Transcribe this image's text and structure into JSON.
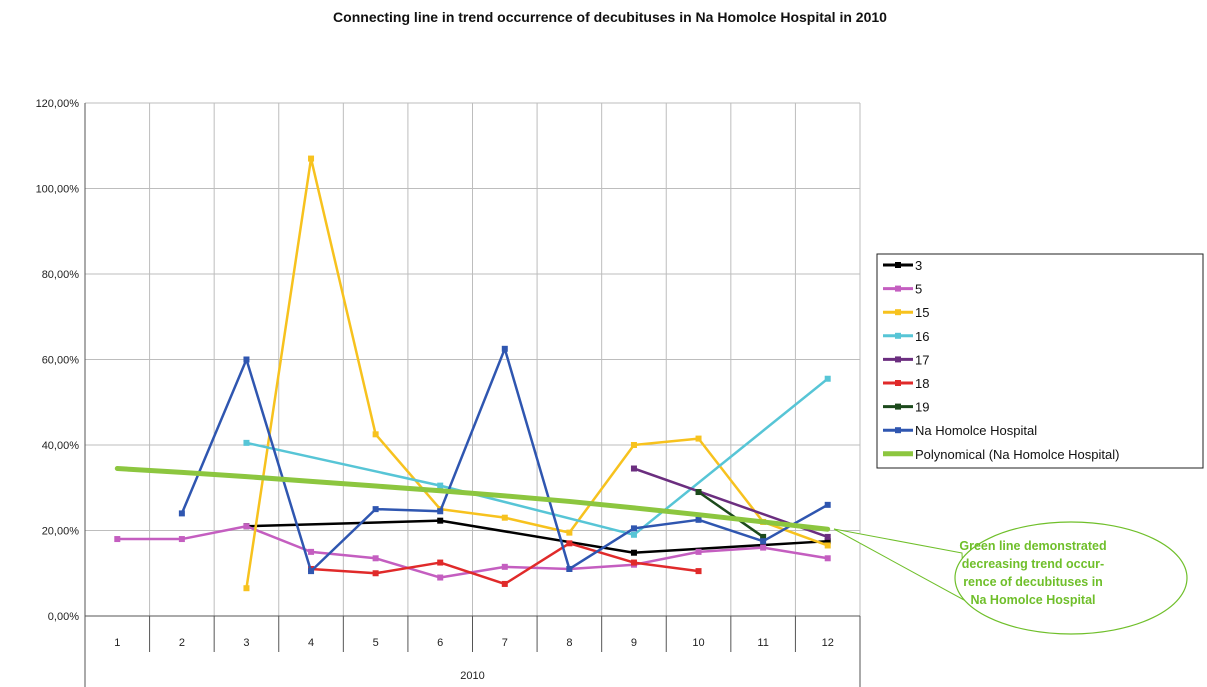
{
  "chart_data": {
    "type": "line",
    "title": "Connecting line in trend occurrence of decubituses in Na Homolce Hospital in 2010",
    "categories": [
      "1",
      "2",
      "3",
      "4",
      "5",
      "6",
      "7",
      "8",
      "9",
      "10",
      "11",
      "12"
    ],
    "x_group_label": "2010",
    "yticks": [
      "0,00%",
      "20,00%",
      "40,00%",
      "60,00%",
      "80,00%",
      "100,00%",
      "120,00%"
    ],
    "ylim": [
      0,
      120
    ],
    "grid": true,
    "legend_position": "right",
    "series": [
      {
        "name": "3",
        "color": "#000000",
        "values": [
          null,
          null,
          21,
          null,
          null,
          22.3,
          null,
          null,
          14.8,
          null,
          null,
          17.5
        ]
      },
      {
        "name": "5",
        "color": "#c45ec0",
        "values": [
          18,
          18,
          21,
          15,
          13.5,
          9,
          11.5,
          11,
          12,
          15,
          16,
          13.5
        ]
      },
      {
        "name": "15",
        "color": "#f7c21e",
        "values": [
          null,
          null,
          6.5,
          107,
          42.5,
          25,
          23,
          19.5,
          40,
          41.5,
          22,
          16.5
        ]
      },
      {
        "name": "16",
        "color": "#57c5d6",
        "values": [
          null,
          null,
          40.5,
          null,
          null,
          30.5,
          null,
          null,
          19,
          null,
          null,
          55.5
        ]
      },
      {
        "name": "17",
        "color": "#6b2e7f",
        "values": [
          null,
          null,
          null,
          null,
          null,
          null,
          null,
          null,
          34.5,
          null,
          null,
          18.5
        ]
      },
      {
        "name": "18",
        "color": "#e02a2a",
        "values": [
          null,
          null,
          null,
          11,
          10,
          12.5,
          7.5,
          17,
          12.5,
          10.5,
          null,
          null
        ]
      },
      {
        "name": "19",
        "color": "#1c4a1c",
        "values": [
          null,
          null,
          null,
          null,
          null,
          null,
          null,
          null,
          null,
          29,
          18.5,
          null
        ]
      },
      {
        "name": "Na Homolce Hospital",
        "color": "#2f56b0",
        "values": [
          null,
          24,
          60,
          10.5,
          25,
          24.5,
          62.5,
          11,
          20.5,
          22.5,
          17.5,
          26
        ]
      },
      {
        "name": "Polynomical (Na Homolce Hospital)",
        "color": "#8cc63f",
        "values": [
          34.5,
          33.6,
          32.6,
          31.5,
          30.4,
          29.3,
          28.1,
          26.8,
          25.3,
          23.7,
          22,
          20.3
        ]
      }
    ],
    "annotation": {
      "lines": [
        "Green line demonstrated",
        "decreasing trend occur-",
        "rence of decubituses in",
        "Na Homolce Hospital"
      ],
      "color": "#6fbf2a"
    }
  }
}
